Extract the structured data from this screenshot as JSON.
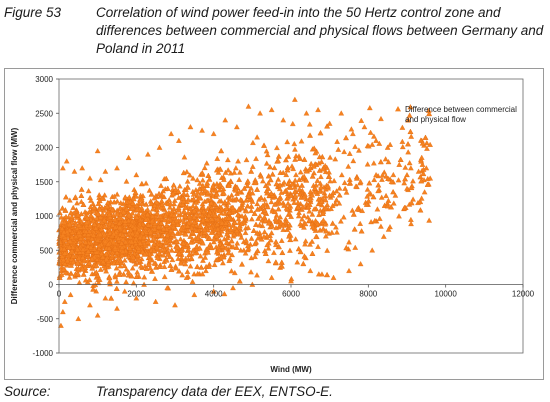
{
  "caption": {
    "label": "Figure 53",
    "text": "Correlation of wind power feed-in into the 50 Hertz control zone and differences between commercial and physical flows between Germany and Poland in 2011"
  },
  "source": {
    "label": "Source:",
    "text": "Transparency data der EEX, ENTSO-E."
  },
  "chart_data": {
    "type": "scatter",
    "xlabel": "Wind (MW)",
    "ylabel": "Difference commercial and physical flow (MW)",
    "xlim": [
      0,
      12000
    ],
    "ylim": [
      -1000,
      3000
    ],
    "xticks": [
      0,
      2000,
      4000,
      6000,
      8000,
      10000,
      12000
    ],
    "yticks": [
      -1000,
      -500,
      0,
      500,
      1000,
      1500,
      2000,
      2500,
      3000
    ],
    "grid": false,
    "legend_position": "top-right",
    "marker": "triangle",
    "marker_color": "#f58220",
    "series": [
      {
        "name": "Difference between commercial and physical flow",
        "approx_points": 3500,
        "x_range": [
          0,
          9600
        ],
        "y_range": [
          -650,
          2700
        ],
        "points": [
          [
            50,
            -600
          ],
          [
            100,
            -400
          ],
          [
            150,
            -250
          ],
          [
            300,
            -150
          ],
          [
            100,
            1700
          ],
          [
            200,
            1800
          ],
          [
            400,
            1650
          ],
          [
            600,
            1700
          ],
          [
            800,
            1550
          ],
          [
            1000,
            1950
          ],
          [
            1200,
            1650
          ],
          [
            1500,
            1700
          ],
          [
            1800,
            1850
          ],
          [
            2000,
            1600
          ],
          [
            2300,
            1900
          ],
          [
            2600,
            2000
          ],
          [
            2900,
            2200
          ],
          [
            3100,
            2100
          ],
          [
            3400,
            2300
          ],
          [
            3700,
            2250
          ],
          [
            4000,
            2200
          ],
          [
            4300,
            2400
          ],
          [
            4600,
            2300
          ],
          [
            4900,
            2600
          ],
          [
            5200,
            2500
          ],
          [
            5500,
            2550
          ],
          [
            5800,
            2400
          ],
          [
            6100,
            2700
          ],
          [
            6400,
            2500
          ],
          [
            6700,
            2550
          ],
          [
            7000,
            2350
          ],
          [
            7300,
            2500
          ],
          [
            7600,
            2200
          ],
          [
            7900,
            2300
          ],
          [
            8200,
            2100
          ],
          [
            8500,
            2000
          ],
          [
            8800,
            1750
          ],
          [
            9100,
            1700
          ],
          [
            9400,
            1750
          ],
          [
            9600,
            1550
          ],
          [
            9000,
            1400
          ],
          [
            8700,
            1300
          ],
          [
            8400,
            700
          ],
          [
            8100,
            500
          ],
          [
            7800,
            300
          ],
          [
            7500,
            200
          ],
          [
            7100,
            100
          ],
          [
            6800,
            150
          ],
          [
            6500,
            200
          ],
          [
            6000,
            50
          ],
          [
            5500,
            100
          ],
          [
            5000,
            0
          ],
          [
            4500,
            -50
          ],
          [
            4000,
            -100
          ],
          [
            3500,
            -150
          ],
          [
            3000,
            -300
          ],
          [
            2500,
            -250
          ],
          [
            2000,
            -200
          ],
          [
            1500,
            -350
          ],
          [
            1000,
            -450
          ],
          [
            500,
            -500
          ],
          [
            800,
            -300
          ],
          [
            1200,
            -200
          ],
          [
            1700,
            -100
          ],
          [
            2200,
            0
          ],
          [
            2800,
            -50
          ],
          [
            3300,
            100
          ],
          [
            3800,
            200
          ],
          [
            4200,
            400
          ],
          [
            4700,
            500
          ],
          [
            5300,
            700
          ],
          [
            5800,
            800
          ],
          [
            6200,
            1000
          ],
          [
            6600,
            1100
          ],
          [
            7000,
            1300
          ],
          [
            7400,
            1400
          ],
          [
            7800,
            1500
          ],
          [
            8200,
            1600
          ],
          [
            8600,
            1500
          ],
          [
            9000,
            1600
          ],
          [
            9300,
            1650
          ],
          [
            9500,
            1700
          ]
        ]
      }
    ]
  }
}
